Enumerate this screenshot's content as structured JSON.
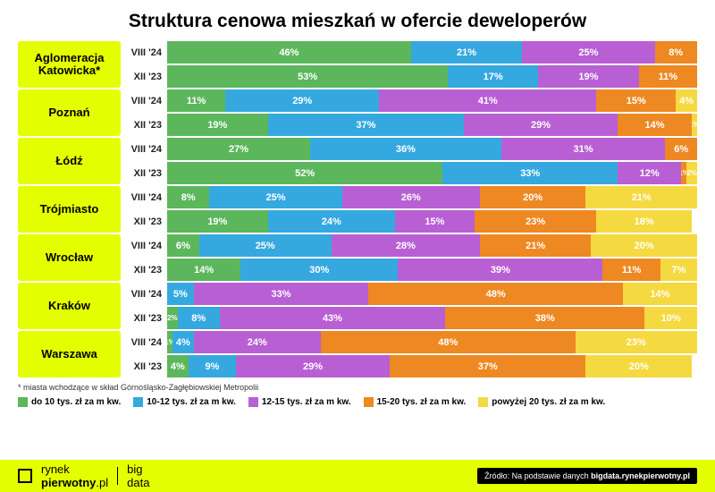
{
  "title": "Struktura cenowa mieszkań w ofercie deweloperów",
  "footnote": "* miasta wchodzące w skład Górnośląsko-Zagłębiowskiej Metropolii",
  "colors": {
    "c1": "#5cb75c",
    "c2": "#36a8e0",
    "c3": "#b95fd4",
    "c4": "#ee8822",
    "c5": "#f5d940",
    "highlight": "#e4ff00",
    "text_on_bar": "#ffffff"
  },
  "legend": [
    {
      "label": "do 10 tys. zł za m kw.",
      "color": "#5cb75c"
    },
    {
      "label": "10-12 tys. zł za m kw.",
      "color": "#36a8e0"
    },
    {
      "label": "12-15 tys. zł za m kw.",
      "color": "#b95fd4"
    },
    {
      "label": "15-20 tys. zł za m kw.",
      "color": "#ee8822"
    },
    {
      "label": "powyżej 20 tys. zł za m kw.",
      "color": "#f5d940"
    }
  ],
  "cities": [
    {
      "name": "Aglomeracja Katowicka*",
      "rows": [
        {
          "period": "VIII '24",
          "segs": [
            {
              "v": 46,
              "c": "c1"
            },
            {
              "v": 21,
              "c": "c2"
            },
            {
              "v": 25,
              "c": "c3"
            },
            {
              "v": 8,
              "c": "c4"
            }
          ]
        },
        {
          "period": "XII '23",
          "segs": [
            {
              "v": 53,
              "c": "c1"
            },
            {
              "v": 17,
              "c": "c2"
            },
            {
              "v": 19,
              "c": "c3"
            },
            {
              "v": 11,
              "c": "c4"
            }
          ]
        }
      ]
    },
    {
      "name": "Poznań",
      "rows": [
        {
          "period": "VIII '24",
          "segs": [
            {
              "v": 11,
              "c": "c1"
            },
            {
              "v": 29,
              "c": "c2"
            },
            {
              "v": 41,
              "c": "c3"
            },
            {
              "v": 15,
              "c": "c4"
            },
            {
              "v": 4,
              "c": "c5"
            }
          ]
        },
        {
          "period": "XII '23",
          "segs": [
            {
              "v": 19,
              "c": "c1"
            },
            {
              "v": 37,
              "c": "c2"
            },
            {
              "v": 29,
              "c": "c3"
            },
            {
              "v": 14,
              "c": "c4"
            },
            {
              "v": 1,
              "c": "c5"
            }
          ]
        }
      ]
    },
    {
      "name": "Łódź",
      "rows": [
        {
          "period": "VIII '24",
          "segs": [
            {
              "v": 27,
              "c": "c1"
            },
            {
              "v": 36,
              "c": "c2"
            },
            {
              "v": 31,
              "c": "c3"
            },
            {
              "v": 6,
              "c": "c4"
            }
          ]
        },
        {
          "period": "XII '23",
          "segs": [
            {
              "v": 52,
              "c": "c1"
            },
            {
              "v": 33,
              "c": "c2"
            },
            {
              "v": 12,
              "c": "c3"
            },
            {
              "v": 1,
              "c": "c4"
            },
            {
              "v": 2,
              "c": "c5"
            }
          ]
        }
      ]
    },
    {
      "name": "Trójmiasto",
      "rows": [
        {
          "period": "VIII '24",
          "segs": [
            {
              "v": 8,
              "c": "c1"
            },
            {
              "v": 25,
              "c": "c2"
            },
            {
              "v": 26,
              "c": "c3"
            },
            {
              "v": 20,
              "c": "c4"
            },
            {
              "v": 21,
              "c": "c5"
            }
          ]
        },
        {
          "period": "XII '23",
          "segs": [
            {
              "v": 19,
              "c": "c1"
            },
            {
              "v": 24,
              "c": "c2"
            },
            {
              "v": 15,
              "c": "c3"
            },
            {
              "v": 23,
              "c": "c4"
            },
            {
              "v": 18,
              "c": "c5"
            }
          ]
        }
      ]
    },
    {
      "name": "Wrocław",
      "rows": [
        {
          "period": "VIII '24",
          "segs": [
            {
              "v": 6,
              "c": "c1"
            },
            {
              "v": 25,
              "c": "c2"
            },
            {
              "v": 28,
              "c": "c3"
            },
            {
              "v": 21,
              "c": "c4"
            },
            {
              "v": 20,
              "c": "c5"
            }
          ]
        },
        {
          "period": "XII '23",
          "segs": [
            {
              "v": 14,
              "c": "c1"
            },
            {
              "v": 30,
              "c": "c2"
            },
            {
              "v": 39,
              "c": "c3"
            },
            {
              "v": 11,
              "c": "c4"
            },
            {
              "v": 7,
              "c": "c5"
            }
          ]
        }
      ]
    },
    {
      "name": "Kraków",
      "rows": [
        {
          "period": "VIII '24",
          "segs": [
            {
              "v": 5,
              "c": "c2"
            },
            {
              "v": 33,
              "c": "c3"
            },
            {
              "v": 48,
              "c": "c4"
            },
            {
              "v": 14,
              "c": "c5"
            }
          ]
        },
        {
          "period": "XII '23",
          "segs": [
            {
              "v": 2,
              "c": "c1"
            },
            {
              "v": 8,
              "c": "c2"
            },
            {
              "v": 43,
              "c": "c3"
            },
            {
              "v": 38,
              "c": "c4"
            },
            {
              "v": 10,
              "c": "c5"
            }
          ]
        }
      ]
    },
    {
      "name": "Warszawa",
      "rows": [
        {
          "period": "VIII '24",
          "segs": [
            {
              "v": 1,
              "c": "c1"
            },
            {
              "v": 4,
              "c": "c2"
            },
            {
              "v": 24,
              "c": "c3"
            },
            {
              "v": 48,
              "c": "c4"
            },
            {
              "v": 23,
              "c": "c5"
            }
          ]
        },
        {
          "period": "XII '23",
          "segs": [
            {
              "v": 4,
              "c": "c1"
            },
            {
              "v": 9,
              "c": "c2"
            },
            {
              "v": 29,
              "c": "c3"
            },
            {
              "v": 37,
              "c": "c4"
            },
            {
              "v": 20,
              "c": "c5"
            }
          ]
        }
      ]
    }
  ],
  "brand": {
    "name1a": "rynek",
    "name1b": "pierwotny",
    "suffix": ".pl",
    "name2": "big",
    "name2b": "data"
  },
  "source": {
    "prefix": "Źródło: Na podstawie danych ",
    "bold": "bigdata.rynekpierwotny.pl"
  }
}
